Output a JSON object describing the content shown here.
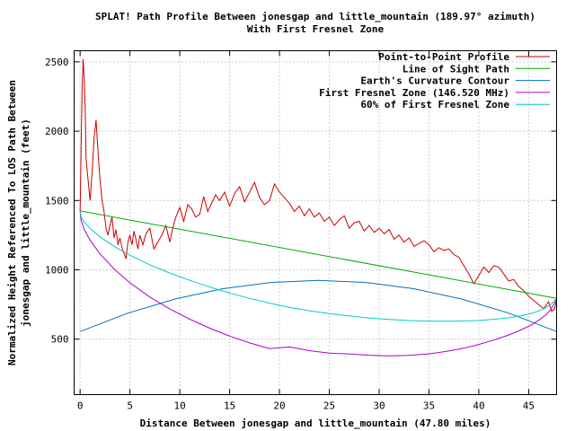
{
  "chart_data": {
    "type": "line",
    "title": "SPLAT! Path Profile Between jonesgap and little_mountain (189.97° azimuth)",
    "subtitle": "With First Fresnel Zone",
    "xlabel": "Distance Between jonesgap and little_mountain (47.80 miles)",
    "ylabel_line1": "Normalized Height Referenced To LOS Path Between",
    "ylabel_line2": "jonesgap and little_mountain (feet)",
    "xlim": [
      -0.6,
      47.8
    ],
    "ylim": [
      100,
      2580
    ],
    "x_ticks": [
      0,
      5,
      10,
      15,
      20,
      25,
      30,
      35,
      40,
      45
    ],
    "x_tick_labels": [
      "0",
      "5",
      "10",
      "15",
      "20",
      "25",
      "30",
      "35",
      "40",
      "45"
    ],
    "y_ticks": [
      500,
      1000,
      1500,
      2000,
      2500
    ],
    "y_tick_labels": [
      "500",
      "1000",
      "1500",
      "2000",
      "2500"
    ],
    "grid": true,
    "legend_position": "top-right",
    "series": [
      {
        "name": "Point-to-Point Profile",
        "color": "#cc0000",
        "x": [
          0,
          0.1,
          0.2,
          0.3,
          0.4,
          0.5,
          0.6,
          0.8,
          1.0,
          1.2,
          1.4,
          1.6,
          1.8,
          2.0,
          2.2,
          2.4,
          2.6,
          2.8,
          3.0,
          3.2,
          3.4,
          3.6,
          3.8,
          4.0,
          4.2,
          4.4,
          4.6,
          4.8,
          5.0,
          5.2,
          5.4,
          5.6,
          5.8,
          6.0,
          6.3,
          6.6,
          7.0,
          7.4,
          7.8,
          8.2,
          8.6,
          9.0,
          9.3,
          9.6,
          10.0,
          10.4,
          10.8,
          11.2,
          11.6,
          12.0,
          12.4,
          12.8,
          13.2,
          13.6,
          14.0,
          14.5,
          15.0,
          15.5,
          16.0,
          16.5,
          17.0,
          17.5,
          18.0,
          18.5,
          19.0,
          19.5,
          20.0,
          20.5,
          21.0,
          21.5,
          22.0,
          22.5,
          23.0,
          23.5,
          24.0,
          24.5,
          25.0,
          25.5,
          26.0,
          26.5,
          27.0,
          27.5,
          28.0,
          28.5,
          29.0,
          29.5,
          30.0,
          30.5,
          31.0,
          31.5,
          32.0,
          32.5,
          33.0,
          33.5,
          34.0,
          34.5,
          35.0,
          35.5,
          36.0,
          36.5,
          37.0,
          37.5,
          38.0,
          38.5,
          39.0,
          39.5,
          40.0,
          40.5,
          41.0,
          41.5,
          42.0,
          42.5,
          43.0,
          43.5,
          44.0,
          44.5,
          45.0,
          45.5,
          46.0,
          46.5,
          47.0,
          47.3,
          47.6,
          47.8
        ],
        "values": [
          1420,
          1900,
          2300,
          2520,
          2400,
          2200,
          1800,
          1650,
          1500,
          1700,
          1950,
          2080,
          1850,
          1650,
          1500,
          1420,
          1300,
          1250,
          1320,
          1380,
          1230,
          1290,
          1180,
          1230,
          1160,
          1120,
          1080,
          1200,
          1250,
          1180,
          1280,
          1220,
          1150,
          1250,
          1180,
          1260,
          1300,
          1150,
          1200,
          1250,
          1320,
          1200,
          1300,
          1380,
          1450,
          1350,
          1470,
          1440,
          1380,
          1400,
          1530,
          1420,
          1480,
          1540,
          1500,
          1560,
          1460,
          1550,
          1600,
          1490,
          1560,
          1630,
          1520,
          1470,
          1500,
          1620,
          1560,
          1520,
          1480,
          1420,
          1460,
          1390,
          1440,
          1380,
          1410,
          1350,
          1380,
          1320,
          1360,
          1390,
          1300,
          1340,
          1350,
          1280,
          1320,
          1270,
          1300,
          1260,
          1290,
          1220,
          1250,
          1200,
          1230,
          1170,
          1190,
          1210,
          1180,
          1130,
          1160,
          1140,
          1150,
          1110,
          1090,
          1030,
          970,
          900,
          960,
          1020,
          980,
          1030,
          1020,
          970,
          920,
          930,
          880,
          850,
          810,
          780,
          750,
          720,
          770,
          700,
          720,
          780
        ]
      },
      {
        "name": "Line of Sight Path",
        "color": "#00aa00",
        "x": [
          0,
          47.8
        ],
        "values": [
          1425,
          795
        ]
      },
      {
        "name": "Earth's Curvature Contour",
        "color": "#0070c0",
        "x": [
          0,
          4.78,
          9.56,
          14.34,
          19.12,
          23.9,
          28.68,
          33.46,
          38.24,
          43.02,
          47.8
        ],
        "values": [
          555,
          687,
          790,
          864,
          909,
          924,
          909,
          864,
          790,
          687,
          555
        ]
      },
      {
        "name": "First Fresnel Zone (146.520 MHz)",
        "color": "#aa00cc",
        "x": [
          0,
          0.1,
          0.4,
          1.0,
          2.0,
          3.5,
          5.0,
          7.0,
          9.0,
          11.0,
          13.0,
          15.0,
          17.0,
          19.0,
          21.0,
          23.0,
          25.0,
          27.0,
          29.0,
          31.0,
          33.0,
          35.0,
          37.0,
          38.5,
          40.0,
          41.5,
          43.0,
          44.2,
          45.2,
          46.0,
          46.7,
          47.2,
          47.6,
          47.8
        ],
        "values": [
          1425,
          1358,
          1293,
          1213,
          1115,
          1000,
          906,
          804,
          718,
          644,
          579,
          522,
          473,
          432,
          444,
          417,
          400,
          393,
          384,
          379,
          383,
          394,
          415,
          435,
          462,
          494,
          530,
          566,
          600,
          636,
          674,
          712,
          760,
          795
        ]
      },
      {
        "name": "60% of First Fresnel Zone",
        "color": "#00cccc",
        "x": [
          0,
          0.1,
          0.4,
          1.0,
          2.0,
          3.5,
          5.0,
          7.0,
          9.0,
          11.0,
          13.0,
          15.0,
          17.0,
          19.0,
          21.0,
          23.0,
          25.0,
          27.0,
          29.0,
          31.0,
          33.0,
          35.0,
          37.0,
          38.5,
          40.0,
          41.5,
          43.0,
          44.2,
          45.2,
          46.0,
          46.7,
          47.2,
          47.6,
          47.8
        ],
        "values": [
          1425,
          1385,
          1346,
          1298,
          1238,
          1166,
          1105,
          1036,
          977,
          924,
          876,
          833,
          794,
          760,
          730,
          705,
          684,
          667,
          653,
          642,
          634,
          630,
          629,
          631,
          635,
          643,
          654,
          668,
          684,
          703,
          726,
          749,
          777,
          795
        ]
      }
    ]
  }
}
